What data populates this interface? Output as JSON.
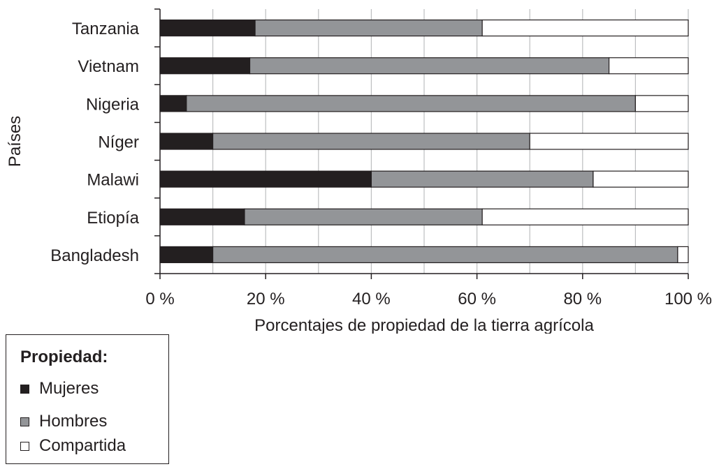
{
  "chart_data": {
    "type": "bar",
    "orientation": "horizontal",
    "stacked": true,
    "ylabel": "Países",
    "xlabel": "Porcentajes de propiedad de la tierra agrícola",
    "categories": [
      "Tanzania",
      "Vietnam",
      "Nigeria",
      "Níger",
      "Malawi",
      "Etiopía",
      "Bangladesh"
    ],
    "series": [
      {
        "name": "Mujeres",
        "color": "#231f20",
        "values": [
          18,
          17,
          5,
          10,
          40,
          16,
          10
        ]
      },
      {
        "name": "Hombres",
        "color": "#939598",
        "values": [
          43,
          68,
          85,
          60,
          42,
          45,
          88
        ]
      },
      {
        "name": "Compartida",
        "color": "#ffffff",
        "values": [
          39,
          15,
          10,
          30,
          18,
          39,
          2
        ]
      }
    ],
    "xlim": [
      0,
      100
    ],
    "xticks": [
      0,
      20,
      40,
      60,
      80,
      100
    ],
    "xtick_labels": [
      "0 %",
      "20 %",
      "40 %",
      "60 %",
      "80 %",
      "100 %"
    ],
    "grid": true,
    "legend": {
      "title": "Propiedad:",
      "position": "bottom-left"
    }
  }
}
